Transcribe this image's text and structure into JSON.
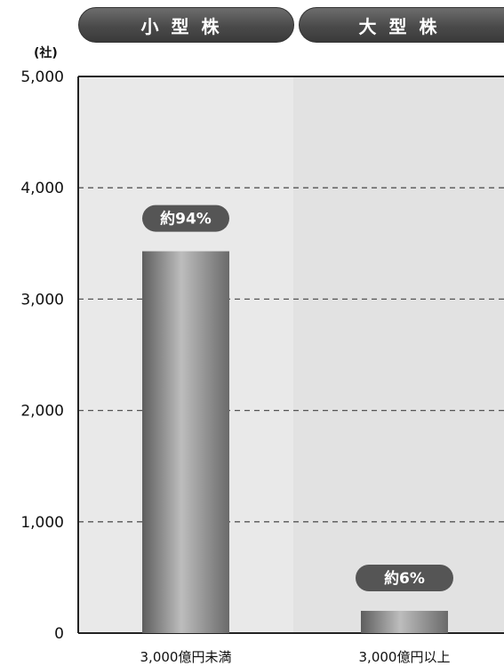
{
  "header": {
    "left_label": "小型株",
    "right_label": "大型株"
  },
  "chart_data": {
    "type": "bar",
    "unit_label": "(社)",
    "categories": [
      "3,000億円未満",
      "3,000億円以上"
    ],
    "values": [
      3430,
      200
    ],
    "data_labels": [
      "約94%",
      "約6%"
    ],
    "ylim": [
      0,
      5000
    ],
    "yticks": [
      0,
      1000,
      2000,
      3000,
      4000,
      5000
    ],
    "ytick_labels": [
      "0",
      "1,000",
      "2,000",
      "3,000",
      "4,000",
      "5,000"
    ],
    "grid": true,
    "colors": {
      "bar": "#8a8a8a",
      "region_left": "#e9e9e9",
      "region_right": "#e2e2e2",
      "label_pill": "#555555"
    }
  }
}
